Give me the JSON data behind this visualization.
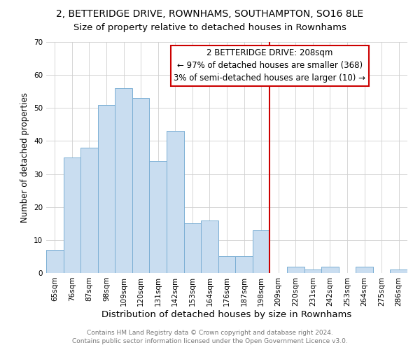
{
  "title": "2, BETTERIDGE DRIVE, ROWNHAMS, SOUTHAMPTON, SO16 8LE",
  "subtitle": "Size of property relative to detached houses in Rownhams",
  "xlabel": "Distribution of detached houses by size in Rownhams",
  "ylabel": "Number of detached properties",
  "bar_labels": [
    "65sqm",
    "76sqm",
    "87sqm",
    "98sqm",
    "109sqm",
    "120sqm",
    "131sqm",
    "142sqm",
    "153sqm",
    "164sqm",
    "176sqm",
    "187sqm",
    "198sqm",
    "209sqm",
    "220sqm",
    "231sqm",
    "242sqm",
    "253sqm",
    "264sqm",
    "275sqm",
    "286sqm"
  ],
  "bar_values": [
    7,
    35,
    38,
    51,
    56,
    53,
    34,
    43,
    15,
    16,
    5,
    5,
    13,
    0,
    2,
    1,
    2,
    0,
    2,
    0,
    1
  ],
  "bar_color": "#c9ddf0",
  "bar_edge_color": "#7bafd4",
  "vline_x_index": 13,
  "vline_color": "#cc0000",
  "ylim": [
    0,
    70
  ],
  "yticks": [
    0,
    10,
    20,
    30,
    40,
    50,
    60,
    70
  ],
  "annotation_title": "2 BETTERIDGE DRIVE: 208sqm",
  "annotation_line1": "← 97% of detached houses are smaller (368)",
  "annotation_line2": "3% of semi-detached houses are larger (10) →",
  "annotation_box_edge": "#cc0000",
  "footer1": "Contains HM Land Registry data © Crown copyright and database right 2024.",
  "footer2": "Contains public sector information licensed under the Open Government Licence v3.0.",
  "title_fontsize": 10,
  "subtitle_fontsize": 9.5,
  "xlabel_fontsize": 9.5,
  "ylabel_fontsize": 8.5,
  "tick_fontsize": 7.5,
  "annotation_fontsize": 8.5,
  "footer_fontsize": 6.5
}
